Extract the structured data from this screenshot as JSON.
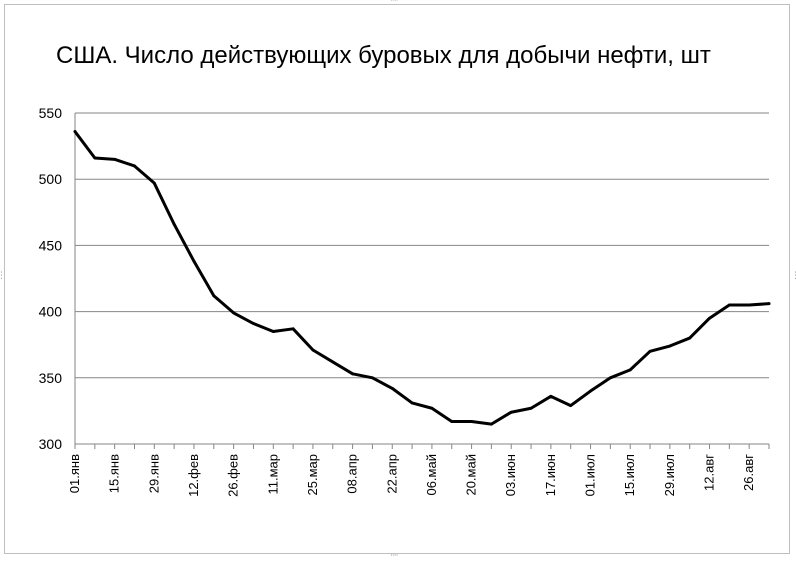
{
  "chart_data": {
    "type": "line",
    "title": "США. Число действующих буровых для добычи нефти, шт",
    "xlabel": "",
    "ylabel": "",
    "ylim": [
      300,
      550
    ],
    "yticks": [
      300,
      350,
      400,
      450,
      500,
      550
    ],
    "x_tick_labels": [
      "01.янв",
      "15.янв",
      "29.янв",
      "12.фев",
      "26.фев",
      "11.мар",
      "25.мар",
      "08.апр",
      "22.апр",
      "06.май",
      "20.май",
      "03.июн",
      "17.июн",
      "01.июл",
      "15.июл",
      "29.июл",
      "12.авг",
      "26.авг"
    ],
    "grid": true,
    "legend": "none",
    "line_color": "#000000",
    "series": [
      {
        "values": [
          536,
          516,
          515,
          510,
          497,
          466,
          438,
          412,
          399,
          391,
          385,
          387,
          371,
          362,
          353,
          350,
          342,
          331,
          327,
          317,
          317,
          315,
          324,
          327,
          336,
          329,
          340,
          350,
          356,
          370,
          374,
          380,
          395,
          405,
          405,
          406
        ]
      }
    ]
  }
}
